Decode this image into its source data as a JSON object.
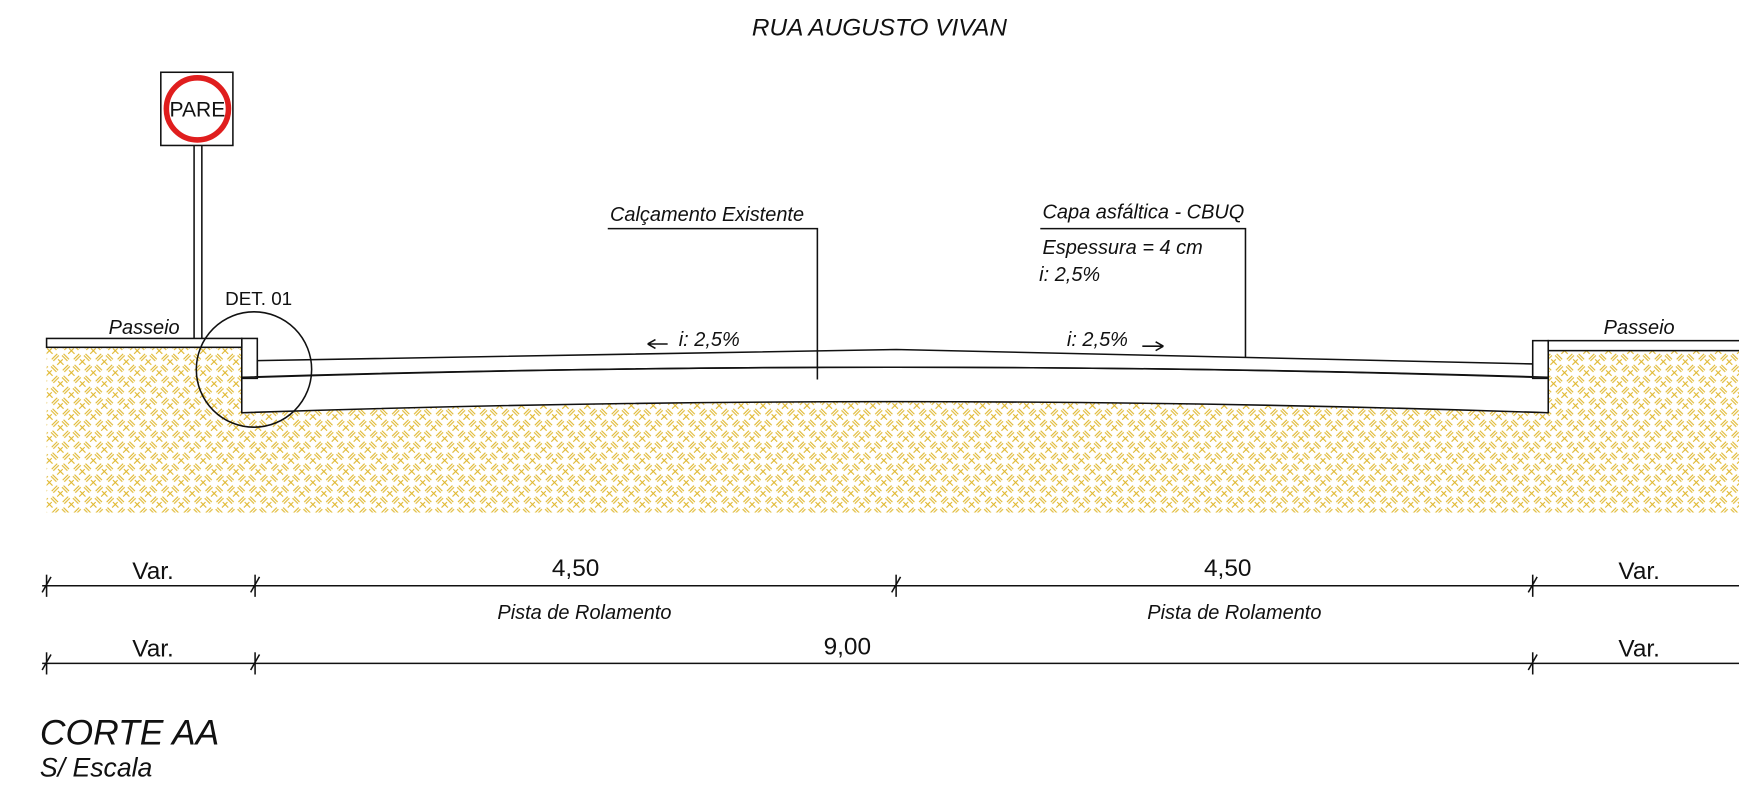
{
  "title": "RUA AUGUSTO VIVAN",
  "sign": "PARE",
  "detail": "DET. 01",
  "sidewalks": [
    "Passeio",
    "Passeio"
  ],
  "annotations": {
    "existing": "Calçamento Existente",
    "asphalt": {
      "label": "Capa asfáltica - CBUQ",
      "thickness": "Espessura = 4 cm",
      "slope": "i: 2,5%"
    }
  },
  "slopes": [
    "i: 2,5%",
    "i: 2,5%"
  ],
  "dimensions": {
    "row1": [
      {
        "value": "Var."
      },
      {
        "value": "4,50",
        "label": "Pista de Rolamento"
      },
      {
        "value": "4,50",
        "label": "Pista de Rolamento"
      },
      {
        "value": "Var."
      }
    ],
    "row2": [
      "Var.",
      "9,00",
      "Var."
    ]
  },
  "footer": {
    "title": "CORTE AA",
    "subtitle": "S/ Escala"
  }
}
